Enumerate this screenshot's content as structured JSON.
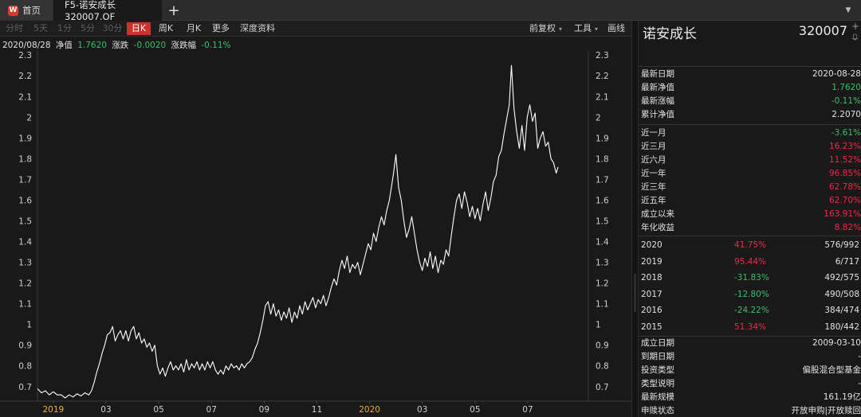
{
  "tabs": {
    "home_logo": "W",
    "home_label": "首页",
    "fund_tab_label": "F5-诺安成长 320007.OF",
    "add_symbol": "+",
    "menu_symbol": "▼"
  },
  "toolbar": {
    "periods": [
      {
        "label": "分时",
        "state": "dim"
      },
      {
        "label": "5天",
        "state": "dim",
        "arrow": true
      },
      {
        "label": "1分",
        "state": "dim"
      },
      {
        "label": "5分",
        "state": "dim"
      },
      {
        "label": "30分",
        "state": "dim"
      },
      {
        "label": "日K",
        "state": "active"
      },
      {
        "label": "周K",
        "state": "normal"
      },
      {
        "label": "月K",
        "state": "normal"
      },
      {
        "label": "更多",
        "state": "normal"
      },
      {
        "label": "深度资料",
        "state": "normal"
      }
    ],
    "right": [
      {
        "label": "前复权",
        "arrow": "▾"
      },
      {
        "label": "工具",
        "arrow": "▾"
      },
      {
        "label": "画线",
        "arrow": ""
      }
    ]
  },
  "info": {
    "date": "2020/08/28",
    "nav_label": "净值",
    "nav_value": "1.7620",
    "change_label": "涨跌",
    "change_value": "-0.0020",
    "pct_label": "涨跌幅",
    "pct_value": "-0.11%"
  },
  "chart_data": {
    "type": "line",
    "title": "",
    "xlabel": "",
    "ylabel": "",
    "ylim": [
      0.63,
      2.32
    ],
    "y_ticks": [
      "0.7",
      "0.8",
      "0.9",
      "1",
      "1.1",
      "1.2",
      "1.3",
      "1.4",
      "1.5",
      "1.6",
      "1.7",
      "1.8",
      "1.9",
      "2",
      "2.1",
      "2.2",
      "2.3"
    ],
    "x_ticks": [
      {
        "label": "2019",
        "month_index": 0.6,
        "highlight": true
      },
      {
        "label": "03",
        "month_index": 2.6,
        "highlight": false
      },
      {
        "label": "05",
        "month_index": 4.6,
        "highlight": false
      },
      {
        "label": "07",
        "month_index": 6.6,
        "highlight": false
      },
      {
        "label": "09",
        "month_index": 8.6,
        "highlight": false
      },
      {
        "label": "11",
        "month_index": 10.6,
        "highlight": false
      },
      {
        "label": "2020",
        "month_index": 12.6,
        "highlight": true
      },
      {
        "label": "03",
        "month_index": 14.6,
        "highlight": false
      },
      {
        "label": "05",
        "month_index": 16.6,
        "highlight": false
      },
      {
        "label": "07",
        "month_index": 18.6,
        "highlight": false
      }
    ],
    "x_range_months": [
      0,
      20.9
    ],
    "line_color": "#ffffff",
    "grid": false,
    "series": [
      {
        "values": [
          [
            0.0,
            0.69
          ],
          [
            0.15,
            0.67
          ],
          [
            0.3,
            0.68
          ],
          [
            0.45,
            0.66
          ],
          [
            0.6,
            0.675
          ],
          [
            0.75,
            0.66
          ],
          [
            0.9,
            0.66
          ],
          [
            1.05,
            0.645
          ],
          [
            1.2,
            0.66
          ],
          [
            1.35,
            0.65
          ],
          [
            1.5,
            0.665
          ],
          [
            1.65,
            0.655
          ],
          [
            1.8,
            0.67
          ],
          [
            1.95,
            0.66
          ],
          [
            2.05,
            0.68
          ],
          [
            2.15,
            0.72
          ],
          [
            2.25,
            0.77
          ],
          [
            2.35,
            0.81
          ],
          [
            2.45,
            0.86
          ],
          [
            2.55,
            0.9
          ],
          [
            2.65,
            0.95
          ],
          [
            2.75,
            0.96
          ],
          [
            2.85,
            0.99
          ],
          [
            2.95,
            0.92
          ],
          [
            3.05,
            0.95
          ],
          [
            3.15,
            0.97
          ],
          [
            3.25,
            0.93
          ],
          [
            3.35,
            0.97
          ],
          [
            3.45,
            0.92
          ],
          [
            3.55,
            0.97
          ],
          [
            3.65,
            0.99
          ],
          [
            3.75,
            0.93
          ],
          [
            3.85,
            0.96
          ],
          [
            3.95,
            0.91
          ],
          [
            4.05,
            0.93
          ],
          [
            4.15,
            0.89
          ],
          [
            4.25,
            0.91
          ],
          [
            4.35,
            0.87
          ],
          [
            4.45,
            0.9
          ],
          [
            4.55,
            0.8
          ],
          [
            4.65,
            0.76
          ],
          [
            4.75,
            0.79
          ],
          [
            4.85,
            0.75
          ],
          [
            4.95,
            0.79
          ],
          [
            5.05,
            0.82
          ],
          [
            5.15,
            0.78
          ],
          [
            5.25,
            0.8
          ],
          [
            5.35,
            0.78
          ],
          [
            5.45,
            0.81
          ],
          [
            5.55,
            0.77
          ],
          [
            5.65,
            0.83
          ],
          [
            5.75,
            0.78
          ],
          [
            5.85,
            0.81
          ],
          [
            5.95,
            0.79
          ],
          [
            6.05,
            0.82
          ],
          [
            6.15,
            0.78
          ],
          [
            6.25,
            0.81
          ],
          [
            6.35,
            0.78
          ],
          [
            6.45,
            0.82
          ],
          [
            6.55,
            0.79
          ],
          [
            6.65,
            0.82
          ],
          [
            6.75,
            0.78
          ],
          [
            6.85,
            0.76
          ],
          [
            6.95,
            0.78
          ],
          [
            7.05,
            0.76
          ],
          [
            7.15,
            0.8
          ],
          [
            7.25,
            0.78
          ],
          [
            7.35,
            0.81
          ],
          [
            7.45,
            0.79
          ],
          [
            7.55,
            0.8
          ],
          [
            7.65,
            0.78
          ],
          [
            7.75,
            0.81
          ],
          [
            7.85,
            0.79
          ],
          [
            7.95,
            0.81
          ],
          [
            8.05,
            0.82
          ],
          [
            8.15,
            0.84
          ],
          [
            8.25,
            0.88
          ],
          [
            8.35,
            0.91
          ],
          [
            8.45,
            0.96
          ],
          [
            8.55,
            1.02
          ],
          [
            8.65,
            1.09
          ],
          [
            8.75,
            1.11
          ],
          [
            8.85,
            1.05
          ],
          [
            8.95,
            1.1
          ],
          [
            9.05,
            1.04
          ],
          [
            9.15,
            1.07
          ],
          [
            9.25,
            1.02
          ],
          [
            9.35,
            1.06
          ],
          [
            9.45,
            1.03
          ],
          [
            9.55,
            1.08
          ],
          [
            9.65,
            1.01
          ],
          [
            9.75,
            1.06
          ],
          [
            9.85,
            1.03
          ],
          [
            9.95,
            1.09
          ],
          [
            10.05,
            1.05
          ],
          [
            10.15,
            1.11
          ],
          [
            10.25,
            1.07
          ],
          [
            10.35,
            1.1
          ],
          [
            10.45,
            1.13
          ],
          [
            10.55,
            1.08
          ],
          [
            10.65,
            1.12
          ],
          [
            10.75,
            1.1
          ],
          [
            10.85,
            1.14
          ],
          [
            10.95,
            1.09
          ],
          [
            11.05,
            1.13
          ],
          [
            11.15,
            1.18
          ],
          [
            11.25,
            1.22
          ],
          [
            11.35,
            1.19
          ],
          [
            11.45,
            1.26
          ],
          [
            11.55,
            1.31
          ],
          [
            11.65,
            1.27
          ],
          [
            11.75,
            1.33
          ],
          [
            11.85,
            1.25
          ],
          [
            11.95,
            1.29
          ],
          [
            12.05,
            1.27
          ],
          [
            12.15,
            1.3
          ],
          [
            12.25,
            1.24
          ],
          [
            12.35,
            1.29
          ],
          [
            12.45,
            1.34
          ],
          [
            12.55,
            1.39
          ],
          [
            12.65,
            1.36
          ],
          [
            12.75,
            1.44
          ],
          [
            12.85,
            1.4
          ],
          [
            12.95,
            1.47
          ],
          [
            13.05,
            1.52
          ],
          [
            13.15,
            1.48
          ],
          [
            13.25,
            1.55
          ],
          [
            13.35,
            1.6
          ],
          [
            13.45,
            1.68
          ],
          [
            13.52,
            1.74
          ],
          [
            13.6,
            1.82
          ],
          [
            13.7,
            1.66
          ],
          [
            13.8,
            1.6
          ],
          [
            13.9,
            1.5
          ],
          [
            14.0,
            1.42
          ],
          [
            14.1,
            1.46
          ],
          [
            14.2,
            1.52
          ],
          [
            14.3,
            1.44
          ],
          [
            14.4,
            1.36
          ],
          [
            14.5,
            1.3
          ],
          [
            14.6,
            1.26
          ],
          [
            14.7,
            1.32
          ],
          [
            14.8,
            1.28
          ],
          [
            14.9,
            1.35
          ],
          [
            15.0,
            1.27
          ],
          [
            15.1,
            1.33
          ],
          [
            15.2,
            1.25
          ],
          [
            15.3,
            1.31
          ],
          [
            15.4,
            1.29
          ],
          [
            15.5,
            1.36
          ],
          [
            15.6,
            1.33
          ],
          [
            15.7,
            1.43
          ],
          [
            15.8,
            1.52
          ],
          [
            15.9,
            1.6
          ],
          [
            16.0,
            1.63
          ],
          [
            16.1,
            1.56
          ],
          [
            16.2,
            1.64
          ],
          [
            16.3,
            1.59
          ],
          [
            16.4,
            1.52
          ],
          [
            16.5,
            1.57
          ],
          [
            16.6,
            1.51
          ],
          [
            16.7,
            1.56
          ],
          [
            16.8,
            1.5
          ],
          [
            16.9,
            1.58
          ],
          [
            17.0,
            1.64
          ],
          [
            17.1,
            1.55
          ],
          [
            17.2,
            1.61
          ],
          [
            17.3,
            1.69
          ],
          [
            17.4,
            1.72
          ],
          [
            17.5,
            1.81
          ],
          [
            17.6,
            1.84
          ],
          [
            17.7,
            1.92
          ],
          [
            17.8,
            1.99
          ],
          [
            17.9,
            2.06
          ],
          [
            17.98,
            2.25
          ],
          [
            18.08,
            2.04
          ],
          [
            18.18,
            1.93
          ],
          [
            18.28,
            1.85
          ],
          [
            18.38,
            1.96
          ],
          [
            18.48,
            1.84
          ],
          [
            18.58,
            2.0
          ],
          [
            18.68,
            2.06
          ],
          [
            18.78,
            1.98
          ],
          [
            18.88,
            2.02
          ],
          [
            18.98,
            1.85
          ],
          [
            19.08,
            1.9
          ],
          [
            19.18,
            1.93
          ],
          [
            19.28,
            1.86
          ],
          [
            19.38,
            1.88
          ],
          [
            19.48,
            1.8
          ],
          [
            19.58,
            1.78
          ],
          [
            19.68,
            1.73
          ],
          [
            19.75,
            1.76
          ]
        ]
      }
    ]
  },
  "panel": {
    "fund_name": "诺安成长",
    "fund_code": "320007",
    "plus_symbol": "+",
    "bell_symbol": "🔔",
    "summary": [
      {
        "label": "最新日期",
        "value": "2020-08-28",
        "color": "#e2e2e2"
      },
      {
        "label": "最新净值",
        "value": "1.7620",
        "color": "#3bbf6e"
      },
      {
        "label": "最新涨幅",
        "value": "-0.11%",
        "color": "#3bbf6e"
      },
      {
        "label": "累计净值",
        "value": "2.2070",
        "color": "#e2e2e2"
      }
    ],
    "periods": [
      {
        "label": "近一月",
        "value": "-3.61%",
        "color": "#3bbf6e"
      },
      {
        "label": "近三月",
        "value": "16.23%",
        "color": "#f0294b"
      },
      {
        "label": "近六月",
        "value": "11.52%",
        "color": "#f0294b"
      },
      {
        "label": "近一年",
        "value": "96.85%",
        "color": "#f0294b"
      },
      {
        "label": "近三年",
        "value": "62.78%",
        "color": "#f0294b"
      },
      {
        "label": "近五年",
        "value": "62.70%",
        "color": "#f0294b"
      },
      {
        "label": "成立以来",
        "value": "163.91%",
        "color": "#f0294b"
      },
      {
        "label": "年化收益",
        "value": "8.82%",
        "color": "#f0294b"
      }
    ],
    "yearly": [
      {
        "year": "2020",
        "return": "41.75%",
        "rank": "576/992",
        "color": "#f0294b"
      },
      {
        "year": "2019",
        "return": "95.44%",
        "rank": "6/717",
        "color": "#f0294b"
      },
      {
        "year": "2018",
        "return": "-31.83%",
        "rank": "492/575",
        "color": "#3bbf6e"
      },
      {
        "year": "2017",
        "return": "-12.80%",
        "rank": "490/508",
        "color": "#3bbf6e"
      },
      {
        "year": "2016",
        "return": "-24.22%",
        "rank": "384/474",
        "color": "#3bbf6e"
      },
      {
        "year": "2015",
        "return": "51.34%",
        "rank": "180/442",
        "color": "#f0294b"
      }
    ],
    "details": [
      {
        "label": "成立日期",
        "value": "2009-03-10"
      },
      {
        "label": "到期日期",
        "value": "-"
      },
      {
        "label": "投资类型",
        "value": "偏股混合型基金"
      },
      {
        "label": "类型说明",
        "value": "-"
      },
      {
        "label": "最新规模",
        "value": "161.19亿"
      },
      {
        "label": "申赎状态",
        "value": "开放申购|开放赎回"
      }
    ]
  }
}
